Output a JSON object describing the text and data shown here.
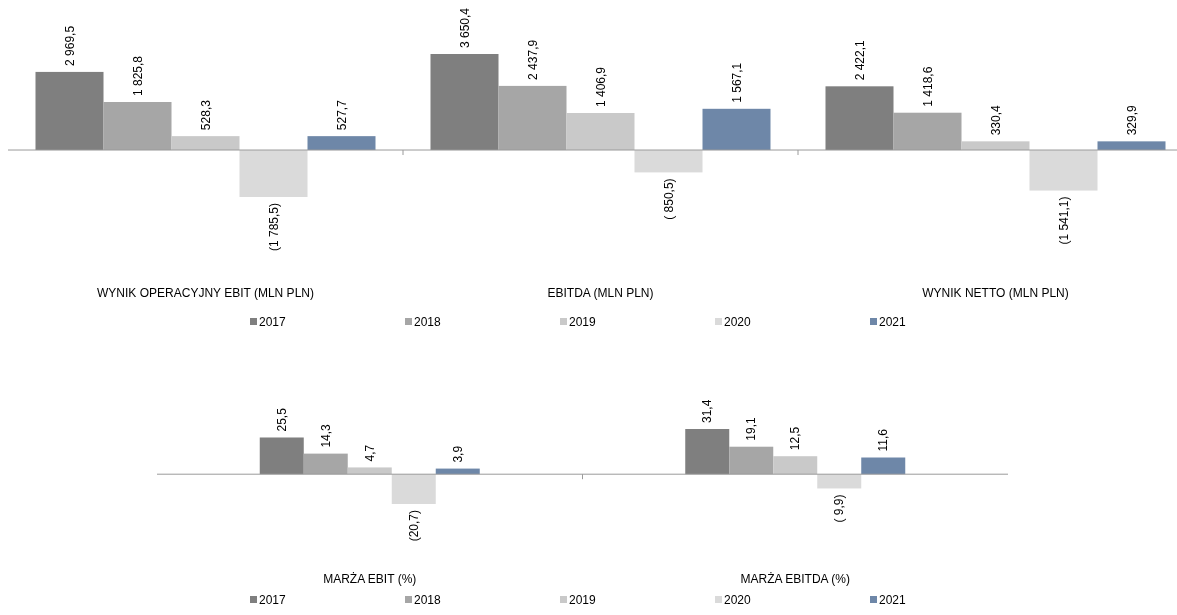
{
  "chart_data": [
    {
      "type": "bar",
      "categories": [
        "WYNIK OPERACYJNY EBIT (MLN PLN)",
        "EBITDA (MLN PLN)",
        "WYNIK NETTO (MLN PLN)"
      ],
      "legend": "bottom",
      "series": [
        {
          "name": "2017",
          "color": "#7f7f7f",
          "values": [
            2969.5,
            3650.4,
            2422.1
          ],
          "value_labels": [
            "2 969,5",
            "3 650,4",
            "2 422,1"
          ]
        },
        {
          "name": "2018",
          "color": "#a6a6a6",
          "values": [
            1825.8,
            2437.9,
            1418.6
          ],
          "value_labels": [
            "1 825,8",
            "2 437,9",
            "1 418,6"
          ]
        },
        {
          "name": "2019",
          "color": "#c9c9c9",
          "values": [
            528.3,
            1406.9,
            330.4
          ],
          "value_labels": [
            "528,3",
            "1 406,9",
            "330,4"
          ]
        },
        {
          "name": "2020",
          "color": "#dadada",
          "values": [
            -1785.5,
            -850.5,
            -1541.1
          ],
          "value_labels": [
            "(1 785,5)",
            "( 850,5)",
            "(1 541,1)"
          ]
        },
        {
          "name": "2021",
          "color": "#6e87a8",
          "values": [
            527.7,
            1567.1,
            329.9
          ],
          "value_labels": [
            "527,7",
            "1 567,1",
            "329,9"
          ]
        }
      ]
    },
    {
      "type": "bar",
      "categories": [
        "MARŻA EBIT (%)",
        "MARŻA EBITDA (%)"
      ],
      "legend": "bottom",
      "series": [
        {
          "name": "2017",
          "color": "#7f7f7f",
          "values": [
            25.5,
            31.4
          ],
          "value_labels": [
            "25,5",
            "31,4"
          ]
        },
        {
          "name": "2018",
          "color": "#a6a6a6",
          "values": [
            14.3,
            19.1
          ],
          "value_labels": [
            "14,3",
            "19,1"
          ]
        },
        {
          "name": "2019",
          "color": "#c9c9c9",
          "values": [
            4.7,
            12.5
          ],
          "value_labels": [
            "4,7",
            "12,5"
          ]
        },
        {
          "name": "2020",
          "color": "#dadada",
          "values": [
            -20.7,
            -9.9
          ],
          "value_labels": [
            "(20,7)",
            "( 9,9)"
          ]
        },
        {
          "name": "2021",
          "color": "#6e87a8",
          "values": [
            3.9,
            11.6
          ],
          "value_labels": [
            "3,9",
            "11,6"
          ]
        }
      ]
    }
  ]
}
